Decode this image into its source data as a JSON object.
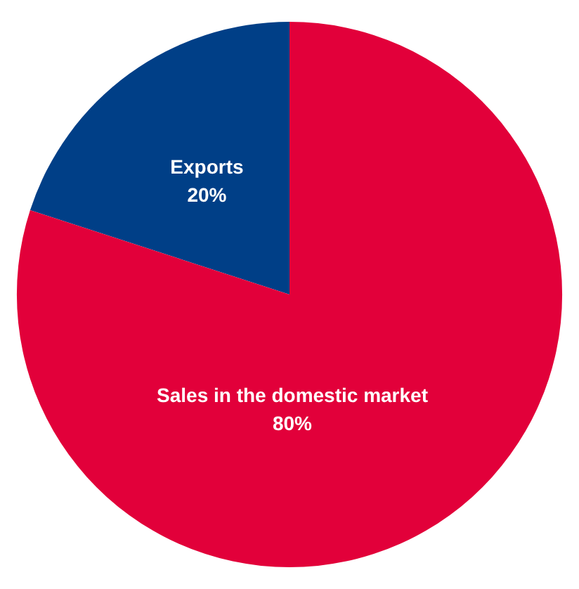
{
  "chart_data": {
    "type": "pie",
    "categories": [
      "Exports",
      "Sales in the domestic market"
    ],
    "values": [
      20,
      80
    ],
    "colors": [
      "#003f87",
      "#e2003a"
    ],
    "value_labels": [
      "20%",
      "80%"
    ],
    "legend": false
  }
}
